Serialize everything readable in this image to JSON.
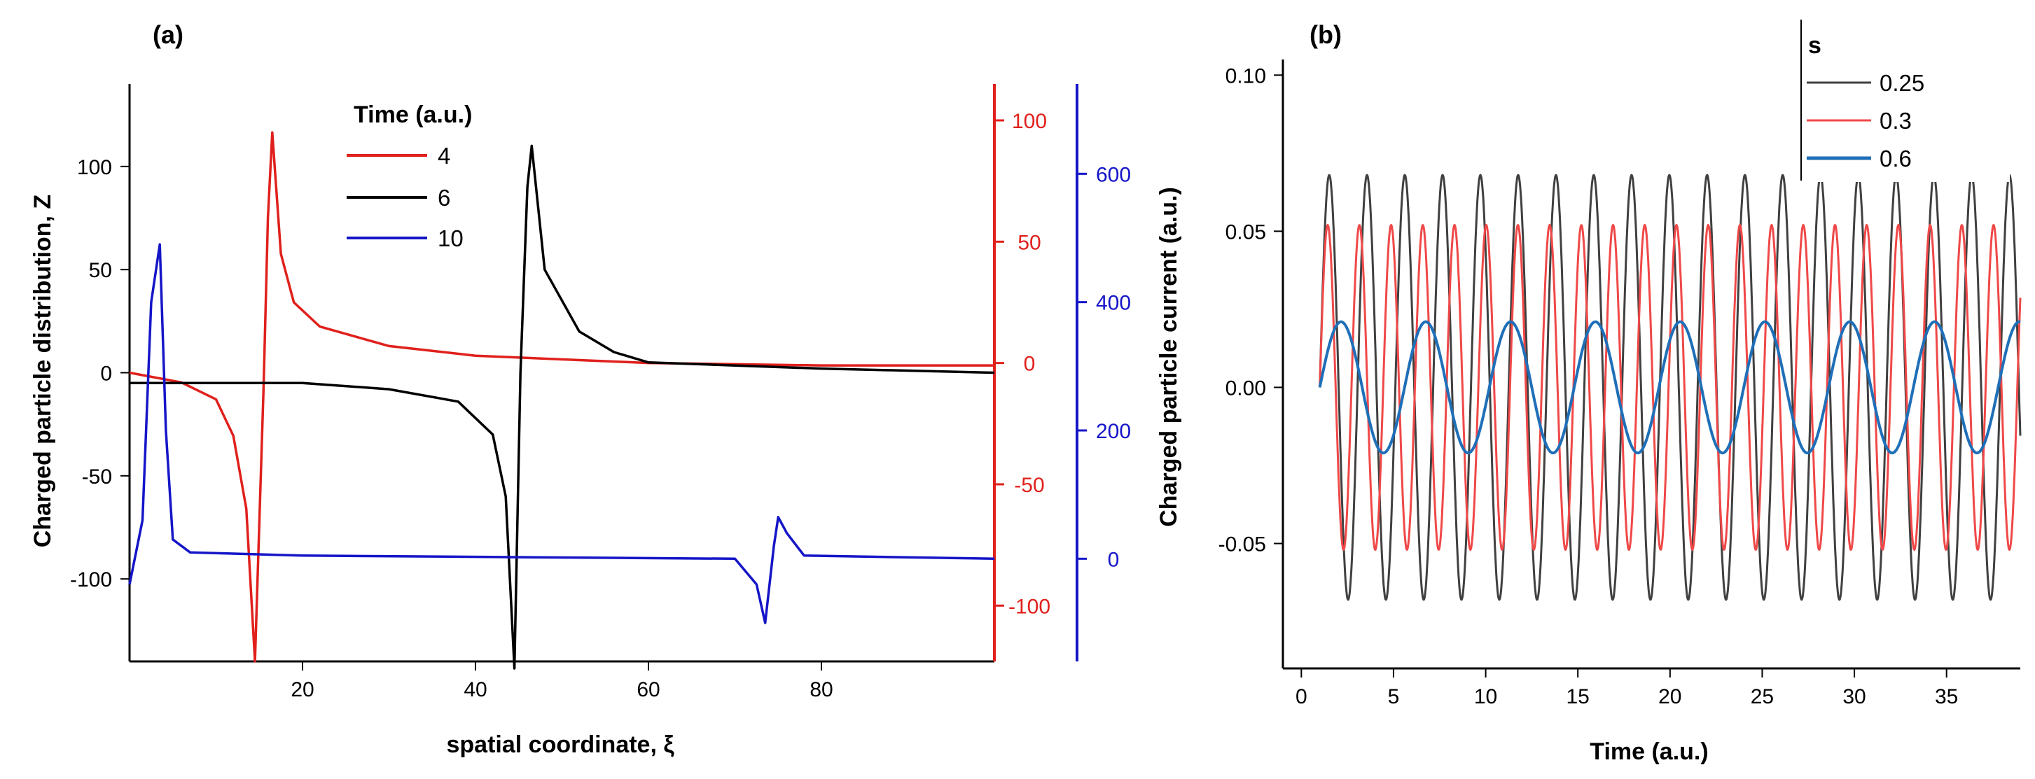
{
  "chart_data": [
    {
      "panel": "(a)",
      "type": "line",
      "xlabel": "spatial coordinate, ξ",
      "ylabel": "Charged particle distribution, Z",
      "xlim": [
        0,
        100
      ],
      "ylim": [
        -140,
        140
      ],
      "x_ticks": [
        "20",
        "40",
        "60",
        "80"
      ],
      "x_tick_values": [
        20,
        40,
        60,
        80
      ],
      "y_ticks": [
        "100",
        "50",
        "0",
        "-50",
        "-100"
      ],
      "y_tick_values": [
        100,
        50,
        0,
        -50,
        -100
      ],
      "right_axis_red": {
        "ticks": [
          "100",
          "50",
          "0",
          "-50",
          "-100"
        ],
        "values": [
          100,
          50,
          0,
          -50,
          -100
        ],
        "ylim": [
          -123,
          115
        ],
        "color": "#e0201c"
      },
      "right_axis_blue": {
        "ticks": [
          "600",
          "400",
          "200",
          "0"
        ],
        "values": [
          600,
          400,
          200,
          0
        ],
        "ylim": [
          -160,
          740
        ],
        "color": "#1515c8"
      },
      "legend_title": "Time (a.u.)",
      "series": [
        {
          "name": "4",
          "color": "#e0201c",
          "axis": "red",
          "x": [
            0,
            6,
            10,
            12,
            13.5,
            14.5,
            15.5,
            16.0,
            16.5,
            17.5,
            19,
            22,
            30,
            40,
            60,
            80,
            100
          ],
          "y": [
            -4,
            -8,
            -15,
            -30,
            -60,
            -123,
            -10,
            60,
            95,
            45,
            25,
            15,
            7,
            3,
            0,
            -1,
            -1
          ]
        },
        {
          "name": "6",
          "color": "#000000",
          "axis": "left",
          "x": [
            0,
            20,
            30,
            38,
            42,
            43.5,
            44.5,
            45.2,
            46,
            46.5,
            48,
            52,
            56,
            60,
            80,
            100
          ],
          "y": [
            -5,
            -5,
            -8,
            -14,
            -30,
            -60,
            -145,
            0,
            90,
            110,
            50,
            20,
            10,
            5,
            2,
            0
          ]
        },
        {
          "name": "10",
          "color": "#1515c8",
          "axis": "blue",
          "x": [
            0,
            1.5,
            2.5,
            3.5,
            4.2,
            5,
            7,
            20,
            70,
            72.5,
            73.5,
            74.5,
            75,
            76,
            78,
            100
          ],
          "y": [
            -40,
            60,
            400,
            490,
            200,
            30,
            10,
            5,
            0,
            -40,
            -100,
            20,
            65,
            40,
            5,
            0
          ]
        }
      ]
    },
    {
      "panel": "(b)",
      "type": "line",
      "xlabel": "Time (a.u.)",
      "ylabel": "Charged particle current (a.u.)",
      "xlim": [
        -1,
        39
      ],
      "ylim": [
        -0.09,
        0.105
      ],
      "x_ticks": [
        "0",
        "5",
        "10",
        "15",
        "20",
        "25",
        "30",
        "35"
      ],
      "x_tick_values": [
        0,
        5,
        10,
        15,
        20,
        25,
        30,
        35
      ],
      "y_ticks": [
        "0.10",
        "0.05",
        "0.00",
        "-0.05"
      ],
      "y_tick_values": [
        0.1,
        0.05,
        0.0,
        -0.05
      ],
      "legend_title": "s",
      "series": [
        {
          "name": "0.25",
          "color": "#404040",
          "amplitude": 0.068,
          "period": 2.05,
          "start": 1.0,
          "end": 39
        },
        {
          "name": "0.3",
          "color": "#f04848",
          "amplitude": 0.052,
          "period": 1.72,
          "start": 1.0,
          "end": 39
        },
        {
          "name": "0.6",
          "color": "#1f6fb8",
          "amplitude": 0.021,
          "period": 4.6,
          "start": 1.0,
          "end": 39
        }
      ]
    }
  ]
}
